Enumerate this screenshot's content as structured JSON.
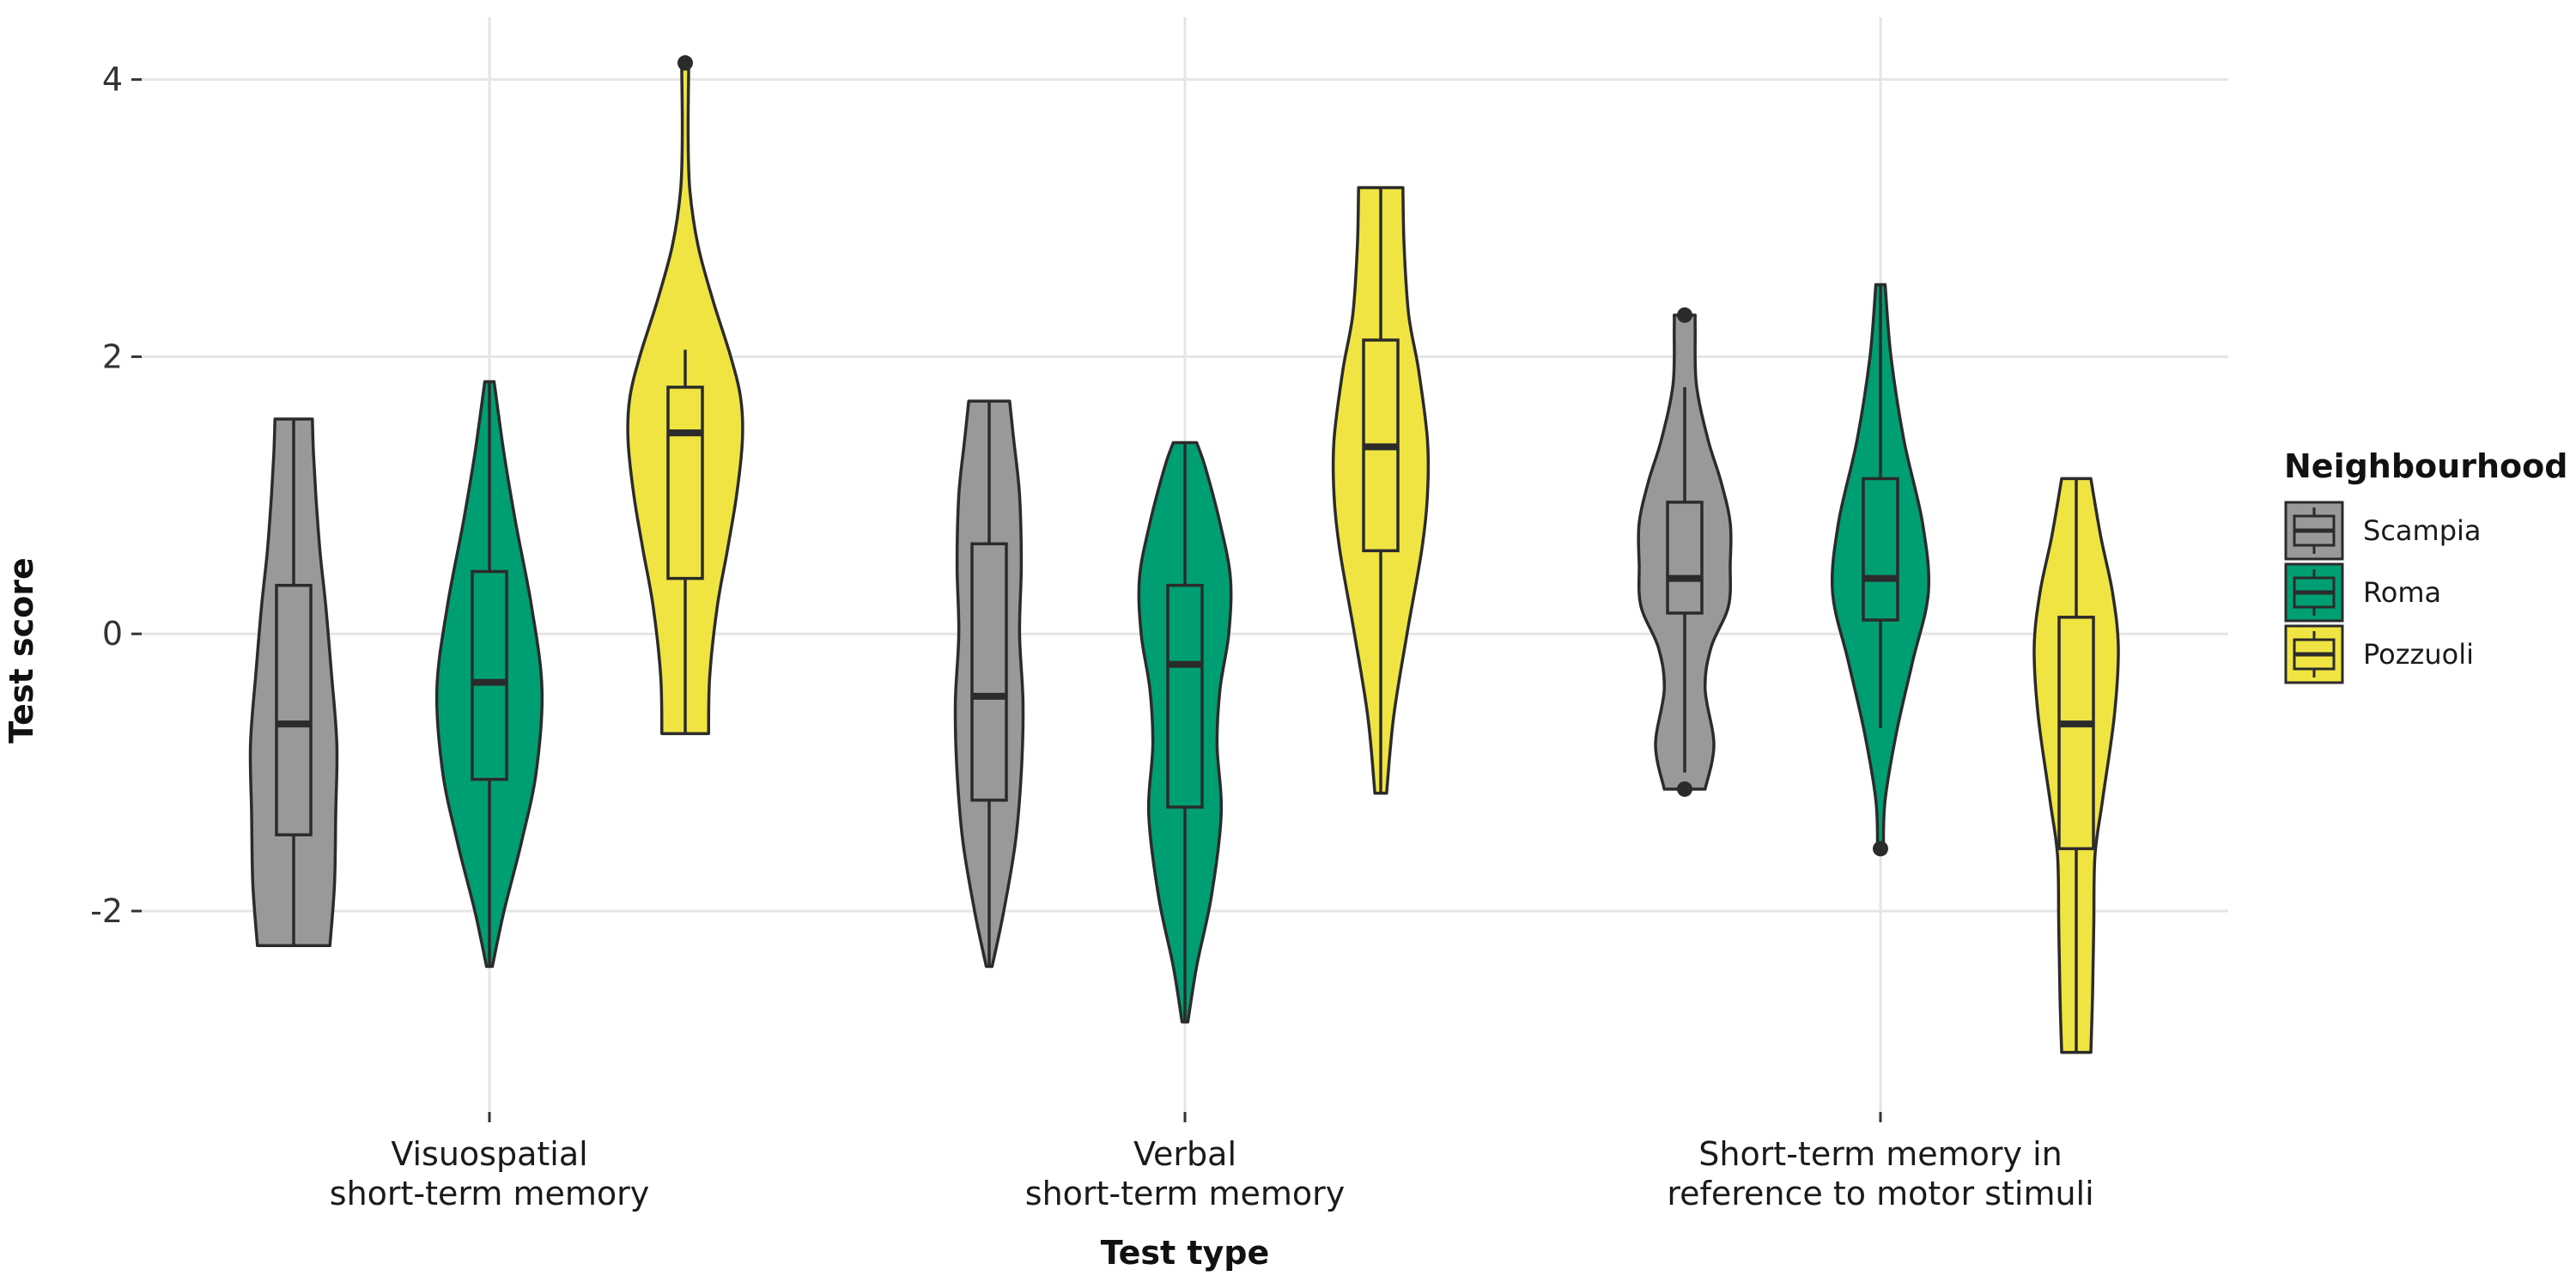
{
  "chart_data": {
    "type": "violin",
    "xlabel": "Test type",
    "ylabel": "Test score",
    "ylim": [
      -3.45,
      4.45
    ],
    "yticks": [
      4,
      2,
      0,
      -2
    ],
    "ytick_labels": [
      "4",
      "2",
      "0",
      "-2"
    ],
    "grid": true,
    "legend": {
      "title": "Neighbourhood",
      "position": "right",
      "entries": [
        "Scampia",
        "Roma",
        "Pozzuoli"
      ]
    },
    "colors": {
      "Scampia": "#999999",
      "Roma": "#009E73",
      "Pozzuoli": "#F0E442",
      "outline": "#2b2b2b",
      "grid": "#e5e5e5"
    },
    "categories": [
      [
        "Visuospatial",
        "short-term memory"
      ],
      [
        "Verbal",
        "short-term memory"
      ],
      [
        "Short-term memory in",
        "reference to motor stimuli"
      ]
    ],
    "groups": [
      {
        "series": [
          {
            "name": "Scampia",
            "min": -2.25,
            "max": 1.55,
            "box": {
              "lower_whisker": -2.25,
              "q1": -1.45,
              "median": -0.65,
              "q3": 0.35,
              "upper_whisker": 1.55
            },
            "outliers": [],
            "density": [
              [
                -2.25,
                0.62
              ],
              [
                -1.8,
                0.7
              ],
              [
                -1.3,
                0.72
              ],
              [
                -0.8,
                0.74
              ],
              [
                -0.3,
                0.65
              ],
              [
                0.2,
                0.55
              ],
              [
                0.6,
                0.45
              ],
              [
                1.0,
                0.38
              ],
              [
                1.3,
                0.34
              ],
              [
                1.55,
                0.32
              ]
            ]
          },
          {
            "name": "Roma",
            "min": -2.4,
            "max": 1.82,
            "box": {
              "lower_whisker": -2.4,
              "q1": -1.05,
              "median": -0.35,
              "q3": 0.45,
              "upper_whisker": 1.82
            },
            "outliers": [],
            "density": [
              [
                -2.4,
                0.05
              ],
              [
                -2.0,
                0.25
              ],
              [
                -1.5,
                0.55
              ],
              [
                -1.0,
                0.8
              ],
              [
                -0.4,
                0.9
              ],
              [
                0.2,
                0.72
              ],
              [
                0.8,
                0.45
              ],
              [
                1.3,
                0.25
              ],
              [
                1.82,
                0.08
              ]
            ]
          },
          {
            "name": "Pozzuoli",
            "min": -0.72,
            "max": 4.12,
            "box": {
              "lower_whisker": -0.72,
              "q1": 0.4,
              "median": 1.45,
              "q3": 1.78,
              "upper_whisker": 2.05
            },
            "outliers": [
              4.12
            ],
            "density": [
              [
                -0.72,
                0.4
              ],
              [
                -0.3,
                0.42
              ],
              [
                0.2,
                0.55
              ],
              [
                0.6,
                0.72
              ],
              [
                1.0,
                0.88
              ],
              [
                1.4,
                0.98
              ],
              [
                1.7,
                0.95
              ],
              [
                2.0,
                0.78
              ],
              [
                2.4,
                0.48
              ],
              [
                2.8,
                0.22
              ],
              [
                3.2,
                0.08
              ],
              [
                3.6,
                0.05
              ],
              [
                4.12,
                0.06
              ]
            ]
          }
        ]
      },
      {
        "series": [
          {
            "name": "Scampia",
            "min": -2.4,
            "max": 1.68,
            "box": {
              "lower_whisker": -2.4,
              "q1": -1.2,
              "median": -0.45,
              "q3": 0.65,
              "upper_whisker": 1.68
            },
            "outliers": [],
            "density": [
              [
                -2.4,
                0.05
              ],
              [
                -2.0,
                0.25
              ],
              [
                -1.5,
                0.45
              ],
              [
                -1.0,
                0.55
              ],
              [
                -0.5,
                0.58
              ],
              [
                0.0,
                0.52
              ],
              [
                0.5,
                0.55
              ],
              [
                1.0,
                0.52
              ],
              [
                1.4,
                0.42
              ],
              [
                1.68,
                0.35
              ]
            ]
          },
          {
            "name": "Roma",
            "min": -2.8,
            "max": 1.38,
            "box": {
              "lower_whisker": -2.8,
              "q1": -1.25,
              "median": -0.22,
              "q3": 0.35,
              "upper_whisker": 1.38
            },
            "outliers": [],
            "density": [
              [
                -2.8,
                0.05
              ],
              [
                -2.4,
                0.2
              ],
              [
                -1.9,
                0.45
              ],
              [
                -1.3,
                0.62
              ],
              [
                -0.8,
                0.55
              ],
              [
                -0.4,
                0.6
              ],
              [
                0.0,
                0.75
              ],
              [
                0.4,
                0.78
              ],
              [
                0.8,
                0.6
              ],
              [
                1.2,
                0.35
              ],
              [
                1.38,
                0.2
              ]
            ]
          },
          {
            "name": "Pozzuoli",
            "min": -1.15,
            "max": 3.22,
            "box": {
              "lower_whisker": -1.15,
              "q1": 0.6,
              "median": 1.35,
              "q3": 2.12,
              "upper_whisker": 3.22
            },
            "outliers": [],
            "density": [
              [
                -1.15,
                0.1
              ],
              [
                -0.6,
                0.22
              ],
              [
                0.0,
                0.45
              ],
              [
                0.6,
                0.7
              ],
              [
                1.0,
                0.8
              ],
              [
                1.4,
                0.8
              ],
              [
                1.9,
                0.65
              ],
              [
                2.3,
                0.48
              ],
              [
                2.8,
                0.4
              ],
              [
                3.22,
                0.38
              ]
            ]
          }
        ]
      },
      {
        "series": [
          {
            "name": "Scampia",
            "min": -1.12,
            "max": 2.3,
            "box": {
              "lower_whisker": -1.0,
              "q1": 0.15,
              "median": 0.4,
              "q3": 0.95,
              "upper_whisker": 1.78
            },
            "outliers": [
              -1.12,
              2.3
            ],
            "density": [
              [
                -1.12,
                0.35
              ],
              [
                -0.8,
                0.5
              ],
              [
                -0.4,
                0.35
              ],
              [
                -0.1,
                0.45
              ],
              [
                0.2,
                0.75
              ],
              [
                0.5,
                0.78
              ],
              [
                0.8,
                0.78
              ],
              [
                1.1,
                0.62
              ],
              [
                1.4,
                0.4
              ],
              [
                1.8,
                0.2
              ],
              [
                2.2,
                0.18
              ],
              [
                2.3,
                0.18
              ]
            ]
          },
          {
            "name": "Roma",
            "min": -1.55,
            "max": 2.52,
            "box": {
              "lower_whisker": -0.68,
              "q1": 0.1,
              "median": 0.4,
              "q3": 1.12,
              "upper_whisker": 2.52
            },
            "outliers": [
              -1.55
            ],
            "density": [
              [
                -1.55,
                0.05
              ],
              [
                -1.2,
                0.08
              ],
              [
                -0.7,
                0.28
              ],
              [
                -0.2,
                0.55
              ],
              [
                0.3,
                0.82
              ],
              [
                0.8,
                0.72
              ],
              [
                1.4,
                0.4
              ],
              [
                2.0,
                0.18
              ],
              [
                2.52,
                0.08
              ]
            ]
          },
          {
            "name": "Pozzuoli",
            "min": -3.02,
            "max": 1.12,
            "box": {
              "lower_whisker": -3.02,
              "q1": -1.55,
              "median": -0.65,
              "q3": 0.12,
              "upper_whisker": 1.12
            },
            "outliers": [],
            "density": [
              [
                -3.02,
                0.25
              ],
              [
                -2.6,
                0.28
              ],
              [
                -2.1,
                0.3
              ],
              [
                -1.6,
                0.32
              ],
              [
                -1.2,
                0.45
              ],
              [
                -0.6,
                0.65
              ],
              [
                -0.1,
                0.72
              ],
              [
                0.3,
                0.62
              ],
              [
                0.7,
                0.42
              ],
              [
                1.12,
                0.25
              ]
            ]
          }
        ]
      }
    ]
  }
}
